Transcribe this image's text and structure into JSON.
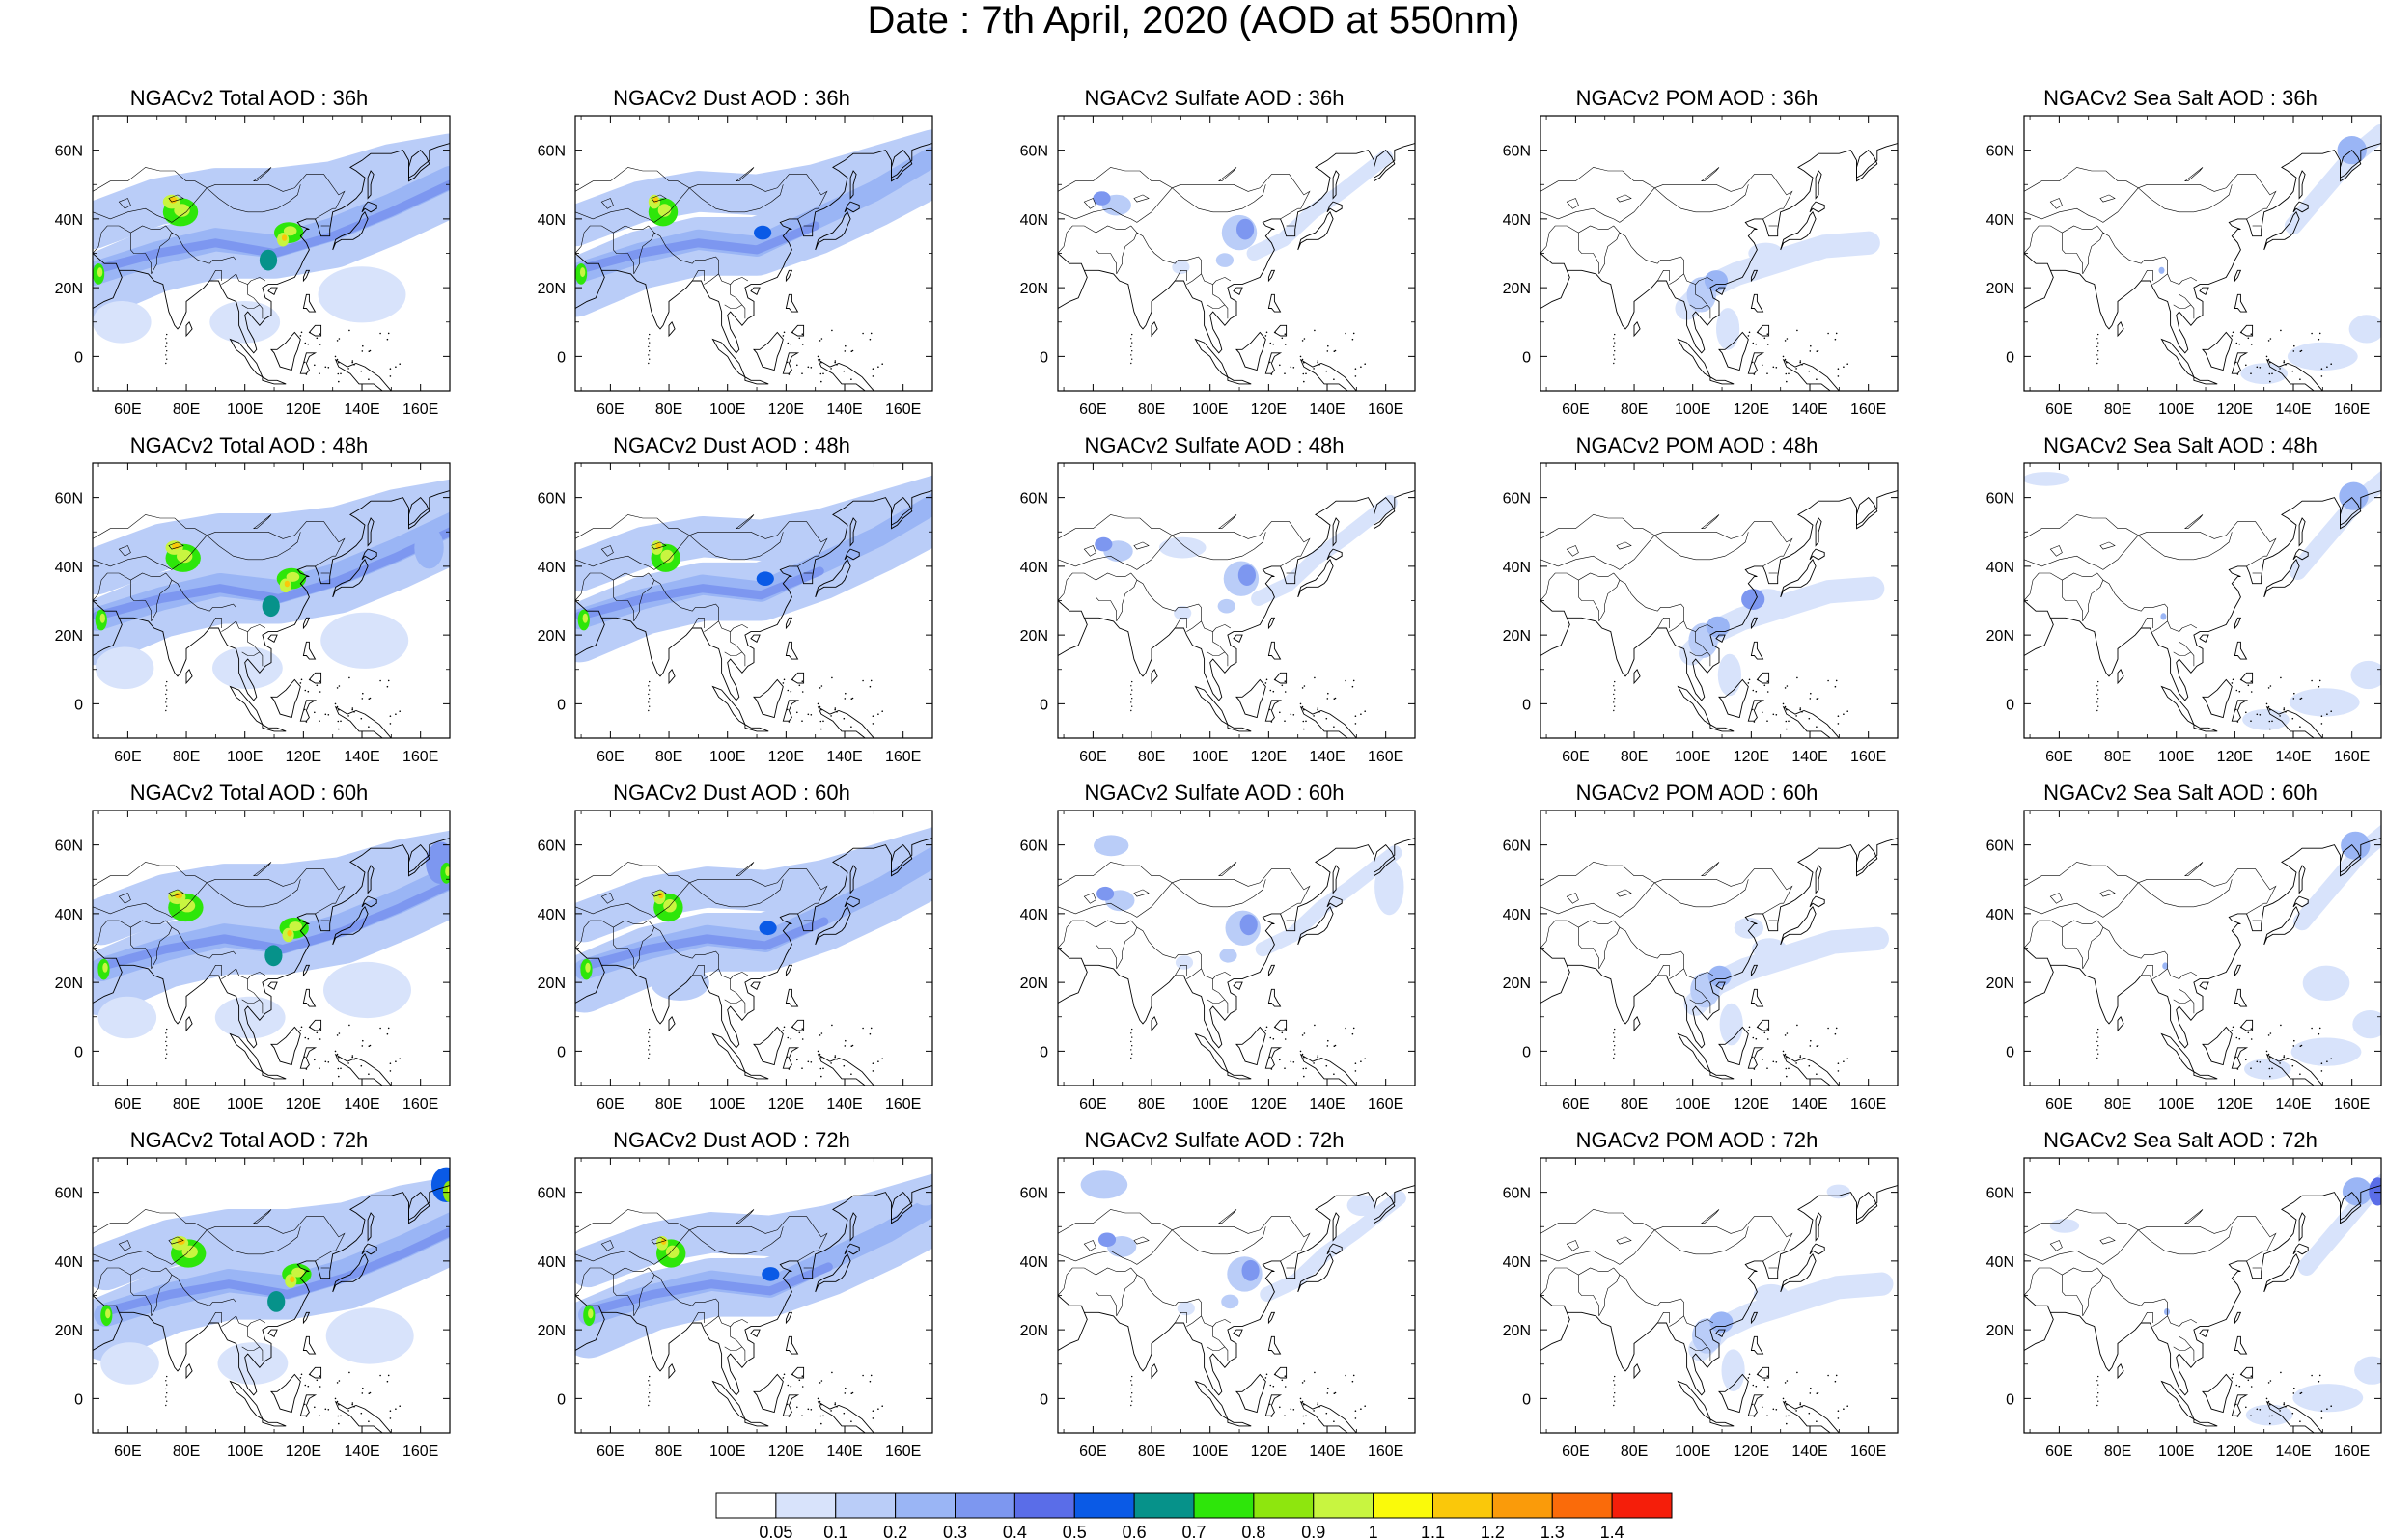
{
  "title": "Date : 7th April, 2020 (AOD at 550nm)",
  "panel_titles": [
    [
      "NGACv2 Total AOD : 36h",
      "NGACv2 Dust AOD : 36h",
      "NGACv2 Sulfate AOD : 36h",
      "NGACv2 POM AOD : 36h",
      "NGACv2 Sea Salt AOD : 36h"
    ],
    [
      "NGACv2 Total AOD : 48h",
      "NGACv2 Dust AOD : 48h",
      "NGACv2 Sulfate AOD : 48h",
      "NGACv2 POM AOD : 48h",
      "NGACv2 Sea Salt AOD : 48h"
    ],
    [
      "NGACv2 Total AOD : 60h",
      "NGACv2 Dust AOD : 60h",
      "NGACv2 Sulfate AOD : 60h",
      "NGACv2 POM AOD : 60h",
      "NGACv2 Sea Salt AOD : 60h"
    ],
    [
      "NGACv2 Total AOD : 72h",
      "NGACv2 Dust AOD : 72h",
      "NGACv2 Sulfate AOD : 72h",
      "NGACv2 POM AOD : 72h",
      "NGACv2 Sea Salt  AOD : 72h"
    ]
  ],
  "map": {
    "lon_range": [
      48,
      170
    ],
    "lat_range": [
      -10,
      70
    ],
    "lon_ticks": [
      60,
      80,
      100,
      120,
      140,
      160
    ],
    "lon_tick_labels": [
      "60E",
      "80E",
      "100E",
      "120E",
      "140E",
      "160E"
    ],
    "lat_ticks": [
      0,
      20,
      40,
      60
    ],
    "lat_tick_labels": [
      "0",
      "20N",
      "40N",
      "60N"
    ]
  },
  "colorbar": {
    "labels": [
      "0.05",
      "0.1",
      "0.2",
      "0.3",
      "0.4",
      "0.5",
      "0.6",
      "0.7",
      "0.8",
      "0.9",
      "1",
      "1.1",
      "1.2",
      "1.3",
      "1.4"
    ],
    "colors": [
      "#ffffff",
      "#d8e3fb",
      "#bacdf8",
      "#9ab5f5",
      "#7d97f0",
      "#5a6de8",
      "#0a5ae6",
      "#06928a",
      "#2ee60a",
      "#8ee60e",
      "#c8f540",
      "#fafa0a",
      "#fac80a",
      "#fa9b0a",
      "#fa6b0a",
      "#f51e0a"
    ]
  }
}
